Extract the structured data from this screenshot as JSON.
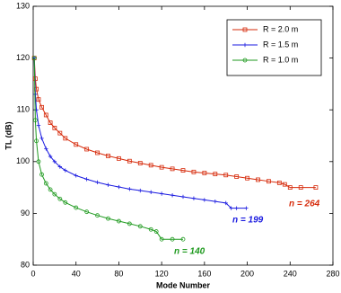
{
  "chart_data": {
    "type": "line",
    "x_label": "Mode Number",
    "y_label": "TL (dB)",
    "xlim": [
      0,
      280
    ],
    "xticks": [
      0,
      40,
      80,
      120,
      160,
      200,
      240,
      280
    ],
    "ylim": [
      80,
      130
    ],
    "yticks": [
      80,
      90,
      100,
      110,
      120,
      130
    ],
    "legend": "upper right",
    "series": [
      {
        "name": "R = 2.0 m",
        "color": "#d62a0a",
        "marker": "square",
        "x": [
          1,
          2,
          3,
          5,
          8,
          12,
          16,
          20,
          25,
          30,
          40,
          50,
          60,
          70,
          80,
          90,
          100,
          110,
          120,
          130,
          140,
          150,
          160,
          170,
          180,
          190,
          200,
          210,
          220,
          230,
          235,
          240,
          250,
          264
        ],
        "values": [
          120,
          116,
          114,
          112,
          110.5,
          109,
          107.5,
          106.5,
          105.5,
          104.5,
          103.3,
          102.4,
          101.7,
          101.1,
          100.6,
          100.1,
          99.7,
          99.3,
          98.9,
          98.6,
          98.3,
          98,
          97.8,
          97.6,
          97.4,
          97.1,
          96.8,
          96.5,
          96.2,
          95.9,
          95.6,
          95,
          95,
          95
        ]
      },
      {
        "name": "R = 1.5 m",
        "color": "#1a1ae0",
        "marker": "plus",
        "x": [
          1,
          2,
          3,
          5,
          8,
          12,
          16,
          20,
          25,
          30,
          40,
          50,
          60,
          70,
          80,
          90,
          100,
          110,
          120,
          130,
          140,
          150,
          160,
          170,
          180,
          185,
          190,
          199
        ],
        "values": [
          120,
          113,
          110,
          107,
          104.5,
          102.5,
          101,
          100,
          99,
          98.3,
          97.3,
          96.6,
          96,
          95.5,
          95.1,
          94.7,
          94.4,
          94.1,
          93.8,
          93.5,
          93.2,
          92.9,
          92.6,
          92.3,
          92,
          91,
          91,
          91
        ]
      },
      {
        "name": "R = 1.0 m",
        "color": "#1f9a1f",
        "marker": "circle",
        "x": [
          1,
          2,
          3,
          5,
          8,
          12,
          16,
          20,
          25,
          30,
          40,
          50,
          60,
          70,
          80,
          90,
          100,
          110,
          115,
          120,
          130,
          140
        ],
        "values": [
          120,
          108,
          104,
          100,
          97.5,
          95.8,
          94.6,
          93.7,
          92.8,
          92.1,
          91.1,
          90.3,
          89.6,
          89,
          88.5,
          88,
          87.5,
          86.9,
          86.5,
          85,
          85,
          85
        ]
      }
    ],
    "annotations": [
      {
        "text": "n = 264",
        "color": "#d62a0a"
      },
      {
        "text": "n = 199",
        "color": "#1a1ae0"
      },
      {
        "text": "n = 140",
        "color": "#1f9a1f"
      }
    ]
  }
}
